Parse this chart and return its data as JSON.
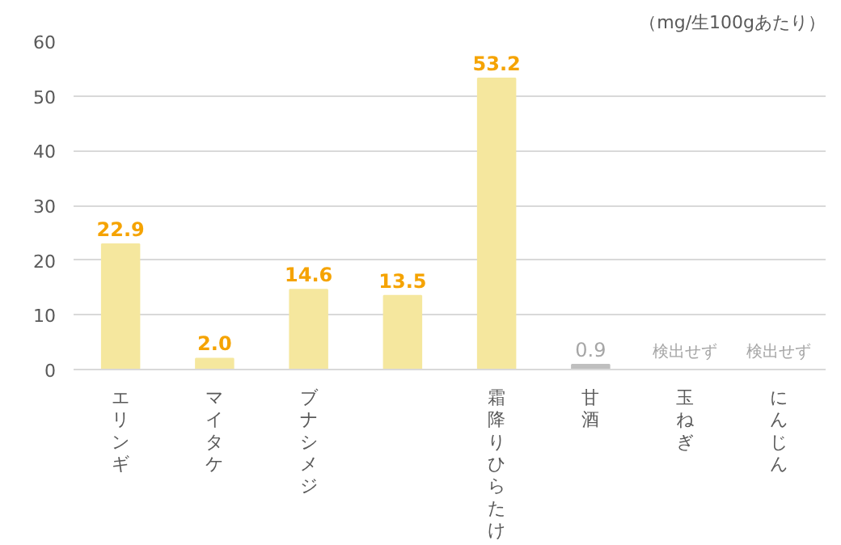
{
  "chart_data": {
    "type": "bar",
    "categories": [
      "エリンギ",
      "マイタケ",
      "ブナシメジ",
      null,
      "霜降りひらたけ",
      "甘酒",
      "玉ねぎ",
      "にんじん"
    ],
    "values": [
      22.9,
      2.0,
      14.6,
      13.5,
      53.2,
      0.9,
      null,
      null
    ],
    "colors": [
      "#f5e79e",
      "#f5e79e",
      "#f5e79e",
      "#f5e79e",
      "#f5e79e",
      "#bfbfbf",
      "#bfbfbf",
      "#bfbfbf"
    ],
    "value_labels": [
      "22.9",
      "2.0",
      "14.6",
      "13.5",
      "53.2",
      "0.9",
      "検出せず",
      "検出せず"
    ],
    "ylim": [
      0,
      60
    ],
    "yticks": [
      0,
      10,
      20,
      30,
      40,
      50,
      60
    ],
    "grid": "y",
    "annotations": [
      "（mg/生100gあたり）"
    ]
  }
}
